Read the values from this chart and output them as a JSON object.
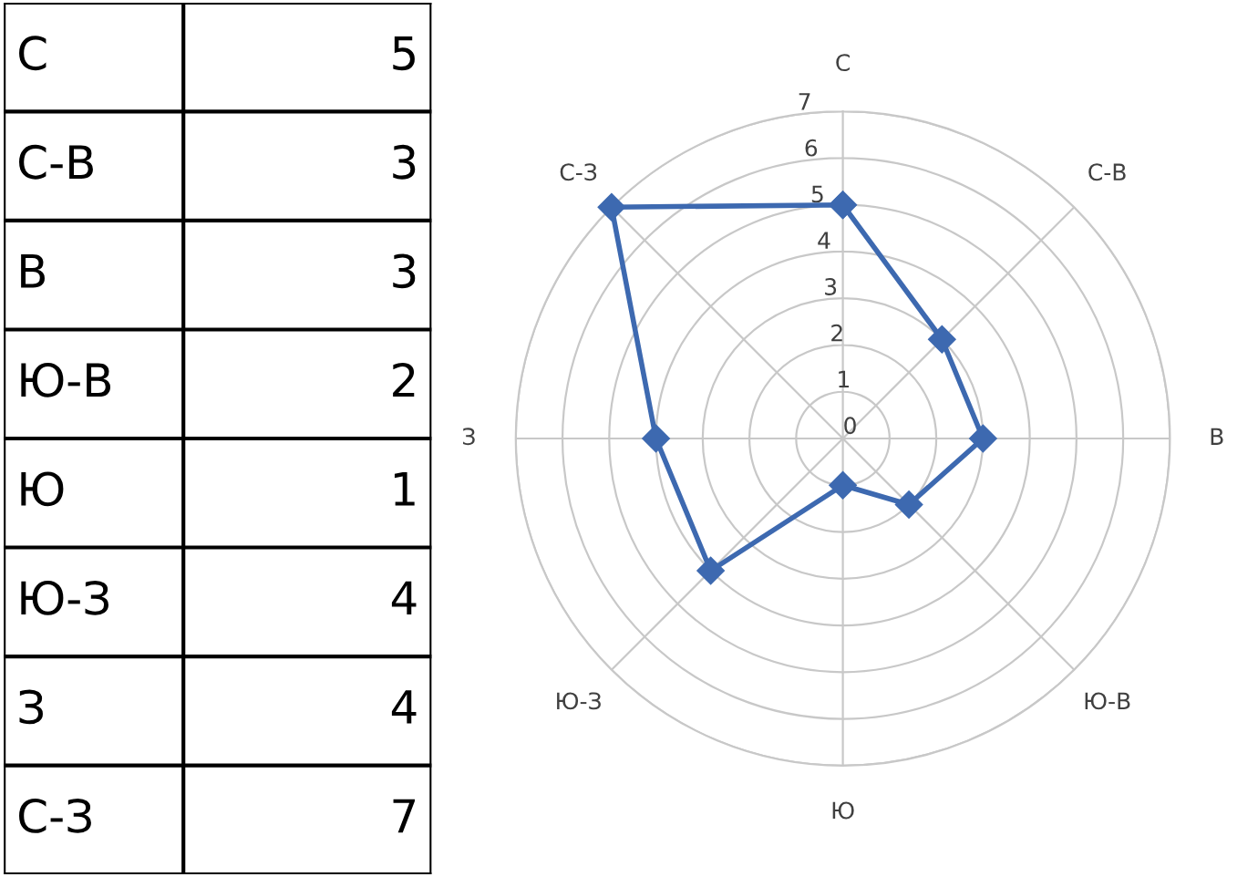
{
  "chart_data": [
    {
      "type": "other",
      "categories": [
        "С",
        "С-В",
        "В",
        "Ю-В",
        "Ю",
        "Ю-З",
        "З",
        "С-З"
      ],
      "values": [
        5,
        3,
        3,
        2,
        1,
        4,
        4,
        7
      ],
      "data_labels": true
    },
    {
      "type": "radar",
      "categories": [
        "С",
        "С-В",
        "В",
        "Ю-В",
        "Ю",
        "Ю-З",
        "З",
        "С-З"
      ],
      "series": [
        {
          "color": "#3d69b0",
          "values": [
            5,
            3,
            3,
            2,
            1,
            4,
            4,
            7
          ]
        }
      ],
      "ylim": [
        0,
        7
      ],
      "yticks": [
        0,
        1,
        2,
        3,
        4,
        5,
        6,
        7
      ],
      "grid": true,
      "marker": "diamond",
      "line_style": "solid"
    }
  ]
}
